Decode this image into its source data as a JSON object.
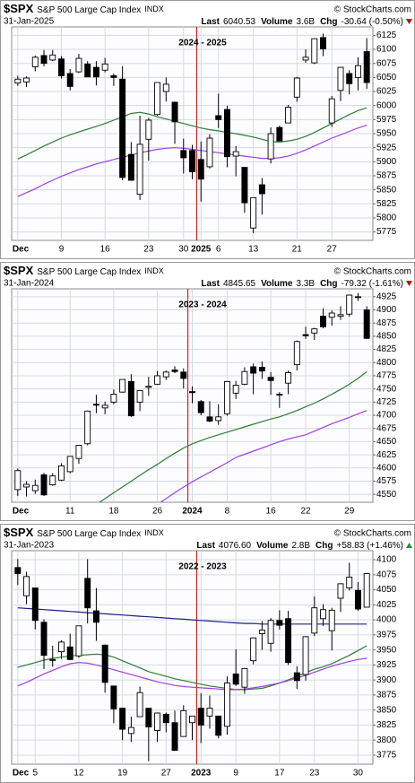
{
  "chart_data": [
    {
      "type": "candlestick",
      "symbol": "$SPX",
      "name": "S&P 500 Large Cap Index",
      "exchange": "INDX",
      "watermark": "© StockCharts.com",
      "date": "31-Jan-2025",
      "last_label": "Last",
      "last": "6040.53",
      "volume_label": "Volume",
      "volume": "3.6B",
      "change_label": "Chg",
      "change": "-30.64 (-0.50%)",
      "change_color": "#cc0000",
      "annotation": "2024 - 2025",
      "categories": [
        "Dec",
        null,
        null,
        null,
        null,
        "9",
        null,
        null,
        null,
        null,
        "16",
        null,
        null,
        null,
        null,
        "23",
        null,
        null,
        null,
        "30",
        null,
        "2025",
        null,
        "6",
        null,
        null,
        null,
        "13",
        null,
        null,
        null,
        null,
        "21",
        null,
        null,
        null,
        "27",
        null,
        null,
        null,
        null
      ],
      "open": [
        6040,
        6042,
        6069,
        6089,
        6081,
        6083,
        6057,
        6060,
        6074,
        6068,
        6063,
        6053,
        6047,
        5913,
        5842,
        5940,
        5984,
        6025,
        6006,
        5920,
        5920,
        5904,
        5891,
        5982,
        5993,
        5910,
        5890,
        5782,
        5859,
        5905,
        5961,
        5969,
        6015,
        6081,
        6076,
        6121,
        5969,
        6027,
        6057,
        6050,
        6096
      ],
      "high": [
        6053,
        6052,
        6089,
        6099,
        6099,
        6088,
        6065,
        6092,
        6079,
        6079,
        6085,
        6057,
        6070,
        5935,
        5982,
        5978,
        6041,
        6050,
        6006,
        5941,
        5930,
        5936,
        5949,
        6021,
        6000,
        5928,
        5890,
        5836,
        5871,
        5961,
        5964,
        6001,
        6051,
        6100,
        6119,
        6128,
        6017,
        6069,
        6063,
        6086,
        6120
      ],
      "low": [
        6035,
        6033,
        6061,
        6070,
        6079,
        6048,
        6027,
        6058,
        6051,
        6036,
        6059,
        6035,
        5867,
        5866,
        5832,
        5902,
        5982,
        6007,
        5932,
        5879,
        5869,
        5829,
        5888,
        5960,
        5890,
        5874,
        5809,
        5773,
        5806,
        5897,
        5937,
        5969,
        6007,
        6076,
        6074,
        6088,
        5962,
        6008,
        6020,
        6027,
        6030
      ],
      "close": [
        6047,
        6049,
        6086,
        6075,
        6090,
        6053,
        6034,
        6084,
        6051,
        6051,
        6074,
        6050,
        5872,
        5867,
        5931,
        5974,
        6041,
        6038,
        5971,
        5907,
        5882,
        5869,
        5942,
        5975,
        5909,
        5918,
        5827,
        5836,
        5843,
        5950,
        5937,
        5997,
        6049,
        6086,
        6119,
        6101,
        6012,
        6068,
        6039,
        6071,
        6041
      ],
      "moving_averages": [
        {
          "color": "#2e7d32",
          "values": [
            5905,
            5912,
            5920,
            5928,
            5935,
            5942,
            5948,
            5953,
            5958,
            5963,
            5968,
            5974,
            5980,
            5986,
            5988,
            5985,
            5980,
            5976,
            5972,
            5968,
            5964,
            5960,
            5957,
            5955,
            5952,
            5950,
            5947,
            5944,
            5940,
            5936,
            5935,
            5937,
            5940,
            5945,
            5952,
            5960,
            5968,
            5976,
            5984,
            5991,
            5996
          ]
        },
        {
          "color": "#a040e0",
          "values": [
            5838,
            5845,
            5852,
            5860,
            5867,
            5874,
            5880,
            5886,
            5891,
            5896,
            5900,
            5904,
            5908,
            5912,
            5916,
            5919,
            5922,
            5924,
            5925,
            5924,
            5922,
            5920,
            5918,
            5916,
            5914,
            5912,
            5910,
            5908,
            5906,
            5906,
            5907,
            5910,
            5915,
            5921,
            5928,
            5935,
            5942,
            5948,
            5954,
            5960,
            5965
          ]
        }
      ],
      "ylim": [
        5760,
        6140
      ],
      "yticks": [
        5775,
        5800,
        5825,
        5850,
        5875,
        5900,
        5925,
        5950,
        5975,
        6000,
        6025,
        6050,
        6075,
        6100,
        6125
      ],
      "grid": true
    },
    {
      "type": "candlestick",
      "symbol": "$SPX",
      "name": "S&P 500 Large Cap Index",
      "exchange": "INDX",
      "watermark": "© StockCharts.com",
      "date": "31-Jan-2024",
      "last_label": "Last",
      "last": "4845.65",
      "volume_label": "Volume",
      "volume": "3.3B",
      "change_label": "Chg",
      "change": "-79.32 (-1.61%)",
      "change_color": "#cc0000",
      "annotation": "2023 - 2024",
      "categories": [
        "Dec",
        null,
        null,
        null,
        null,
        null,
        "11",
        null,
        null,
        null,
        null,
        "18",
        null,
        null,
        null,
        null,
        "26",
        null,
        null,
        null,
        "2024",
        null,
        null,
        null,
        "8",
        null,
        null,
        null,
        null,
        "16",
        null,
        null,
        null,
        "22",
        null,
        null,
        null,
        null,
        "29",
        null,
        null
      ],
      "open": [
        4559,
        4564,
        4557,
        4587,
        4568,
        4577,
        4593,
        4618,
        4646,
        4721,
        4714,
        4725,
        4744,
        4764,
        4725,
        4753,
        4759,
        4773,
        4786,
        4782,
        4745,
        4726,
        4697,
        4690,
        4703,
        4742,
        4759,
        4792,
        4791,
        4772,
        4740,
        4761,
        4796,
        4853,
        4856,
        4888,
        4886,
        4888,
        4892,
        4925,
        4900
      ],
      "high": [
        4599,
        4575,
        4578,
        4591,
        4590,
        4609,
        4623,
        4643,
        4709,
        4739,
        4726,
        4749,
        4768,
        4778,
        4748,
        4773,
        4784,
        4785,
        4793,
        4789,
        4755,
        4729,
        4727,
        4721,
        4764,
        4765,
        4791,
        4798,
        4802,
        4782,
        4744,
        4785,
        4842,
        4868,
        4866,
        4903,
        4899,
        4907,
        4929,
        4932,
        4907
      ],
      "low": [
        4547,
        4546,
        4551,
        4547,
        4566,
        4575,
        4590,
        4608,
        4643,
        4704,
        4702,
        4721,
        4743,
        4697,
        4708,
        4737,
        4758,
        4767,
        4780,
        4751,
        4723,
        4700,
        4687,
        4682,
        4699,
        4731,
        4757,
        4740,
        4769,
        4739,
        4714,
        4740,
        4785,
        4845,
        4843,
        4865,
        4870,
        4881,
        4887,
        4917,
        4845
      ],
      "close": [
        4595,
        4569,
        4567,
        4549,
        4585,
        4604,
        4622,
        4643,
        4708,
        4720,
        4719,
        4740,
        4768,
        4699,
        4747,
        4755,
        4775,
        4782,
        4783,
        4770,
        4743,
        4705,
        4689,
        4697,
        4764,
        4757,
        4783,
        4780,
        4784,
        4766,
        4739,
        4781,
        4840,
        4851,
        4864,
        4868,
        4894,
        4891,
        4928,
        4925,
        4846
      ],
      "moving_averages": [
        {
          "color": "#2e7d32",
          "values": [
            4440,
            4450,
            4460,
            4470,
            4481,
            4491,
            4502,
            4512,
            4522,
            4531,
            4542,
            4553,
            4564,
            4575,
            4586,
            4597,
            4607,
            4618,
            4628,
            4638,
            4646,
            4652,
            4658,
            4663,
            4668,
            4673,
            4678,
            4683,
            4688,
            4693,
            4697,
            4703,
            4709,
            4716,
            4723,
            4731,
            4740,
            4749,
            4759,
            4770,
            4783
          ]
        },
        {
          "color": "#a040e0",
          "values": [
            4420,
            4427,
            4434,
            4441,
            4448,
            4455,
            4462,
            4469,
            4476,
            4483,
            4490,
            4497,
            4504,
            4511,
            4518,
            4525,
            4531,
            4542,
            4553,
            4564,
            4574,
            4583,
            4592,
            4601,
            4610,
            4620,
            4626,
            4632,
            4638,
            4644,
            4650,
            4655,
            4659,
            4663,
            4670,
            4677,
            4684,
            4690,
            4696,
            4703,
            4709
          ]
        }
      ],
      "ylim": [
        4535,
        4940
      ],
      "yticks": [
        4550,
        4575,
        4600,
        4625,
        4650,
        4675,
        4700,
        4725,
        4750,
        4775,
        4800,
        4825,
        4850,
        4875,
        4900,
        4925
      ],
      "grid": true
    },
    {
      "type": "candlestick",
      "symbol": "$SPX",
      "name": "S&P 500 Large Cap Index",
      "exchange": "INDX",
      "watermark": "© StockCharts.com",
      "date": "31-Jan-2023",
      "last_label": "Last",
      "last": "4076.60",
      "volume_label": "Volume",
      "volume": "2.8B",
      "change_label": "Chg",
      "change": "+58.83 (+1.46%)",
      "change_color": "#2e8b2e",
      "annotation": "2022 - 2023",
      "categories": [
        "Dec",
        null,
        "5",
        null,
        null,
        null,
        null,
        "12",
        null,
        null,
        null,
        null,
        "19",
        null,
        null,
        null,
        null,
        "27",
        null,
        null,
        null,
        "2023",
        null,
        null,
        null,
        "9",
        null,
        null,
        null,
        null,
        "17",
        null,
        null,
        null,
        "23",
        null,
        null,
        null,
        null,
        "30",
        null
      ],
      "open": [
        4087,
        4040,
        4053,
        3996,
        3933,
        3947,
        3955,
        3940,
        4069,
        4015,
        3958,
        3890,
        3853,
        3811,
        3839,
        3853,
        3816,
        3843,
        3829,
        3806,
        3829,
        3853,
        3840,
        3840,
        3823,
        3910,
        3888,
        3932,
        3977,
        3961,
        3999,
        4002,
        3912,
        3909,
        3978,
        4002,
        3982,
        4036,
        4053,
        4049,
        4021
      ],
      "high": [
        4101,
        4080,
        4053,
        4001,
        3957,
        3966,
        3977,
        3990,
        4101,
        4053,
        3959,
        3890,
        3854,
        3839,
        3889,
        3853,
        3846,
        3846,
        3849,
        3858,
        3840,
        3878,
        3874,
        3840,
        3906,
        3951,
        3920,
        3971,
        3998,
        4003,
        4016,
        4015,
        3923,
        3973,
        4039,
        4026,
        4020,
        4061,
        4095,
        4063,
        4078
      ],
      "low": [
        4058,
        4026,
        3984,
        3918,
        3922,
        3935,
        3933,
        3937,
        3994,
        3965,
        3879,
        3828,
        3800,
        3797,
        3839,
        3765,
        3797,
        3813,
        3783,
        3806,
        3800,
        3795,
        3819,
        3803,
        3809,
        3890,
        3877,
        3926,
        3950,
        3947,
        3984,
        3925,
        3885,
        3899,
        3973,
        3990,
        3949,
        4013,
        4049,
        4015,
        4021
      ],
      "close": [
        4077,
        4072,
        3999,
        3941,
        3934,
        3963,
        3934,
        3990,
        4020,
        3996,
        3896,
        3852,
        3818,
        3821,
        3879,
        3822,
        3845,
        3829,
        3783,
        3849,
        3840,
        3825,
        3853,
        3808,
        3895,
        3893,
        3919,
        3970,
        3983,
        3999,
        3991,
        3929,
        3899,
        3972,
        4020,
        4017,
        4016,
        4060,
        4071,
        4018,
        4077
      ],
      "moving_averages": [
        {
          "color": "#1a237e",
          "values": [
            4020,
            4019,
            4018,
            4017,
            4016,
            4015,
            4014,
            4013,
            4012,
            4011,
            4010,
            4009,
            4008,
            4007,
            4006,
            4005,
            4004,
            4003,
            4002,
            4001,
            4000,
            3999,
            3998,
            3997,
            3996,
            3995,
            3994,
            3994,
            3993,
            3993,
            3993,
            3993,
            3993,
            3993,
            3993,
            3993,
            3993,
            3993,
            3993,
            3993,
            3993
          ]
        },
        {
          "color": "#2e7d32",
          "values": [
            3921,
            3925,
            3929,
            3933,
            3936,
            3938,
            3940,
            3941,
            3942,
            3943,
            3942,
            3938,
            3932,
            3926,
            3920,
            3914,
            3910,
            3906,
            3902,
            3899,
            3896,
            3893,
            3890,
            3888,
            3886,
            3884,
            3884,
            3885,
            3886,
            3890,
            3895,
            3900,
            3906,
            3912,
            3918,
            3922,
            3927,
            3934,
            3941,
            3949,
            3957
          ]
        },
        {
          "color": "#a040e0",
          "values": [
            3890,
            3896,
            3903,
            3910,
            3916,
            3922,
            3927,
            3929,
            3928,
            3925,
            3921,
            3917,
            3913,
            3909,
            3905,
            3901,
            3897,
            3894,
            3891,
            3889,
            3888,
            3887,
            3886,
            3885,
            3884,
            3884,
            3885,
            3887,
            3889,
            3892,
            3895,
            3899,
            3903,
            3908,
            3913,
            3918,
            3923,
            3927,
            3931,
            3934,
            3936
          ]
        }
      ],
      "ylim": [
        3760,
        4115
      ],
      "yticks": [
        3775,
        3800,
        3825,
        3850,
        3875,
        3900,
        3925,
        3950,
        3975,
        4000,
        4025,
        4050,
        4075,
        4100
      ],
      "grid": true
    }
  ]
}
